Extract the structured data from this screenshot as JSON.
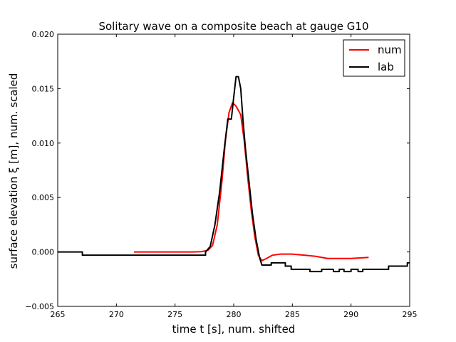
{
  "chart_data": {
    "type": "line",
    "title": "Solitary wave on a composite beach at gauge G10",
    "xlabel": "time  t [s], num. shifted",
    "ylabel": "surface elevation ξ [m], num. scaled",
    "xlim": [
      265,
      295
    ],
    "ylim": [
      -0.005,
      0.02
    ],
    "xticks": [
      265,
      270,
      275,
      280,
      285,
      290,
      295
    ],
    "xtick_labels": [
      "265",
      "270",
      "275",
      "280",
      "285",
      "290",
      "295"
    ],
    "yticks": [
      -0.005,
      0.0,
      0.005,
      0.01,
      0.015,
      0.02
    ],
    "ytick_labels": [
      "−0.005",
      "0.000",
      "0.005",
      "0.010",
      "0.015",
      "0.020"
    ],
    "grid": false,
    "legend_position": "top-right",
    "series": [
      {
        "name": "num",
        "color": "#ff0000",
        "points": [
          [
            271.5,
            0.0
          ],
          [
            276.5,
            0.0
          ],
          [
            277.2,
            2e-05
          ],
          [
            277.8,
            0.00015
          ],
          [
            278.2,
            0.0006
          ],
          [
            278.6,
            0.0025
          ],
          [
            279.0,
            0.0065
          ],
          [
            279.3,
            0.0103
          ],
          [
            279.6,
            0.0128
          ],
          [
            279.9,
            0.0137
          ],
          [
            280.2,
            0.0134
          ],
          [
            280.6,
            0.0126
          ],
          [
            280.9,
            0.0102
          ],
          [
            281.2,
            0.0068
          ],
          [
            281.5,
            0.0038
          ],
          [
            281.8,
            0.0014
          ],
          [
            282.1,
            -0.0003
          ],
          [
            282.4,
            -0.0008
          ],
          [
            282.8,
            -0.0006
          ],
          [
            283.3,
            -0.0003
          ],
          [
            284.0,
            -0.0002
          ],
          [
            285.0,
            -0.0002
          ],
          [
            286.0,
            -0.0003
          ],
          [
            287.0,
            -0.0004
          ],
          [
            288.0,
            -0.0006
          ],
          [
            289.0,
            -0.0006
          ],
          [
            290.0,
            -0.0006
          ],
          [
            291.5,
            -0.0005
          ]
        ]
      },
      {
        "name": "lab",
        "color": "#000000",
        "points": [
          [
            265.0,
            0.0
          ],
          [
            267.1,
            0.0
          ],
          [
            267.1,
            -0.0003
          ],
          [
            277.6,
            -0.0003
          ],
          [
            277.6,
            0.0
          ],
          [
            278.0,
            0.0005
          ],
          [
            278.4,
            0.0025
          ],
          [
            278.8,
            0.0055
          ],
          [
            279.2,
            0.0095
          ],
          [
            279.5,
            0.0122
          ],
          [
            279.8,
            0.0122
          ],
          [
            280.0,
            0.0142
          ],
          [
            280.2,
            0.0161
          ],
          [
            280.4,
            0.0161
          ],
          [
            280.6,
            0.015
          ],
          [
            280.8,
            0.012
          ],
          [
            281.0,
            0.0095
          ],
          [
            281.3,
            0.0065
          ],
          [
            281.6,
            0.0035
          ],
          [
            281.9,
            0.0012
          ],
          [
            282.2,
            -0.0005
          ],
          [
            282.4,
            -0.0012
          ],
          [
            283.2,
            -0.0012
          ],
          [
            283.2,
            -0.001
          ],
          [
            284.4,
            -0.001
          ],
          [
            284.4,
            -0.0013
          ],
          [
            284.9,
            -0.0013
          ],
          [
            284.9,
            -0.0016
          ],
          [
            286.5,
            -0.0016
          ],
          [
            286.5,
            -0.0018
          ],
          [
            287.5,
            -0.0018
          ],
          [
            287.5,
            -0.0016
          ],
          [
            288.5,
            -0.0016
          ],
          [
            288.5,
            -0.0018
          ],
          [
            289.0,
            -0.0018
          ],
          [
            289.0,
            -0.0016
          ],
          [
            289.4,
            -0.0016
          ],
          [
            289.4,
            -0.0018
          ],
          [
            290.0,
            -0.0018
          ],
          [
            290.0,
            -0.0016
          ],
          [
            290.6,
            -0.0016
          ],
          [
            290.6,
            -0.0018
          ],
          [
            291.0,
            -0.0018
          ],
          [
            291.0,
            -0.0016
          ],
          [
            293.2,
            -0.0016
          ],
          [
            293.2,
            -0.0013
          ],
          [
            294.8,
            -0.0013
          ],
          [
            294.8,
            -0.001
          ],
          [
            295.0,
            -0.001
          ]
        ]
      }
    ]
  }
}
